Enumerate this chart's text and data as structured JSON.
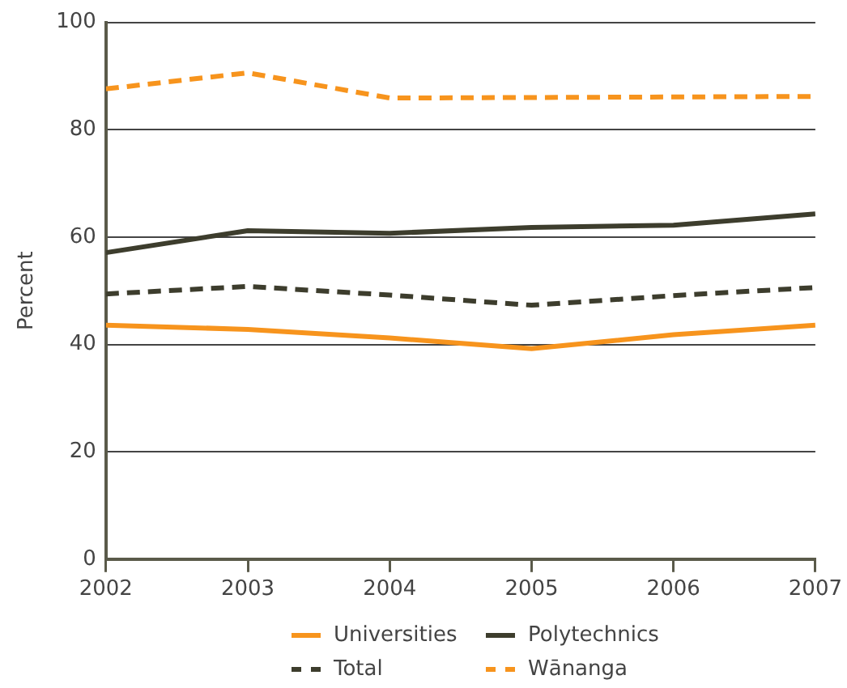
{
  "chart_data": {
    "type": "line",
    "ylabel": "Percent",
    "x": [
      2002,
      2003,
      2004,
      2005,
      2006,
      2007
    ],
    "xlim": [
      2002,
      2007
    ],
    "xticks": [
      2002,
      2003,
      2004,
      2005,
      2006,
      2007
    ],
    "ylim": [
      0,
      100
    ],
    "yticks": [
      0,
      20,
      40,
      60,
      80,
      100
    ],
    "grid": "y",
    "legend": "bottom",
    "marker": "none",
    "series": [
      {
        "name": "Universities",
        "color": "#f7941d",
        "line_style": "solid",
        "values": [
          43.6,
          42.8,
          41.2,
          39.2,
          41.8,
          43.6
        ]
      },
      {
        "name": "Polytechnics",
        "color": "#3d3d2d",
        "line_style": "solid",
        "values": [
          57.1,
          61.2,
          60.7,
          61.8,
          62.2,
          64.3
        ]
      },
      {
        "name": "Total",
        "color": "#3d3d2d",
        "line_style": "dashed",
        "values": [
          49.4,
          50.8,
          49.2,
          47.3,
          49.1,
          50.6
        ]
      },
      {
        "name": "Wānanga",
        "color": "#f7941d",
        "line_style": "dashed",
        "values": [
          87.6,
          90.6,
          85.9,
          86.0,
          86.1,
          86.2
        ]
      }
    ]
  }
}
